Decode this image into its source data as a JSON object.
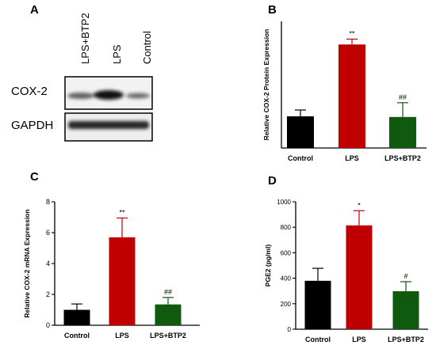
{
  "panels": {
    "a": "A",
    "b": "B",
    "c": "C",
    "d": "D"
  },
  "western_blot": {
    "lanes": [
      "LPS+BTP2",
      "LPS",
      "Control"
    ],
    "rows": [
      "COX-2",
      "GAPDH"
    ],
    "band_intensity": {
      "COX-2": [
        0.55,
        0.95,
        0.5
      ],
      "GAPDH": [
        0.9,
        0.9,
        0.88
      ]
    }
  },
  "chart_data": [
    {
      "type": "bar",
      "panel": "B",
      "categories": [
        "Control",
        "LPS",
        "LPS+BTP2"
      ],
      "values": [
        1.0,
        3.27,
        0.98
      ],
      "errors": [
        0.2,
        0.17,
        0.45
      ],
      "significance": [
        "",
        "**",
        "##"
      ],
      "colors": [
        "#000000",
        "#c00000",
        "#0f5a0f"
      ],
      "title": "",
      "xlabel": "",
      "ylabel": "Relative COX-2 Protein Expression",
      "ylim": [
        0,
        4
      ],
      "yticks": [],
      "grid": false
    },
    {
      "type": "bar",
      "panel": "C",
      "categories": [
        "Control",
        "LPS",
        "LPS+BTP2"
      ],
      "values": [
        1.0,
        5.7,
        1.35
      ],
      "errors": [
        0.38,
        1.25,
        0.45
      ],
      "significance": [
        "",
        "**",
        "##"
      ],
      "colors": [
        "#000000",
        "#c00000",
        "#0f5a0f"
      ],
      "title": "",
      "xlabel": "",
      "ylabel": "Relative COX-2 mRNA Expression",
      "ylim": [
        0,
        8
      ],
      "yticks": [
        "0",
        "2",
        "4",
        "6",
        "8"
      ],
      "grid": false
    },
    {
      "type": "bar",
      "panel": "D",
      "categories": [
        "Control",
        "LPS",
        "LPS+BTP2"
      ],
      "values": [
        380,
        815,
        298
      ],
      "errors": [
        98,
        115,
        75
      ],
      "significance": [
        "",
        "*",
        "#"
      ],
      "colors": [
        "#000000",
        "#c00000",
        "#0f5a0f"
      ],
      "title": "",
      "xlabel": "",
      "ylabel": "PGE2 (pg/ml)",
      "ylim": [
        0,
        1000
      ],
      "yticks": [
        "0",
        "200",
        "400",
        "600",
        "800",
        "1000"
      ],
      "grid": false
    }
  ]
}
